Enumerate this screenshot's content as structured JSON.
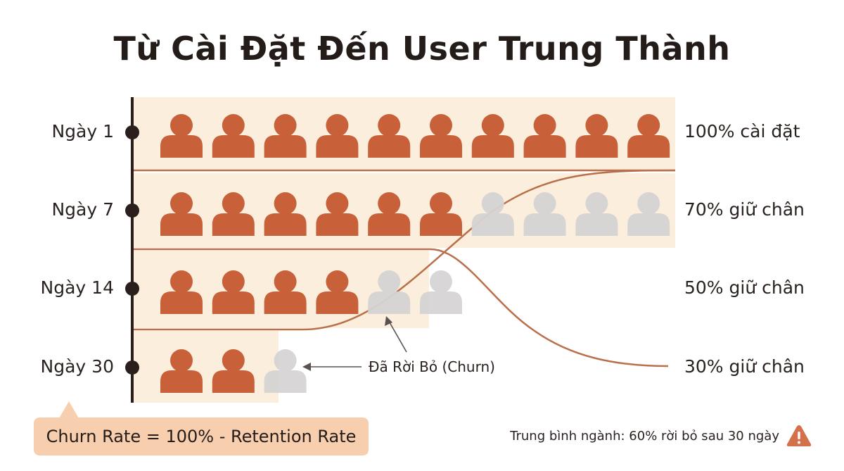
{
  "title": "Từ Cài Đặt Đến User Trung Thành",
  "colors": {
    "active_user": "#c8603a",
    "churned_user": "#d6d4d4",
    "band": "#fbeedd",
    "line": "#b9704a",
    "axis": "#2a1f1c",
    "formula_bg": "#f8cfae",
    "warning": "#d2714a"
  },
  "rows": [
    {
      "day_label": "Ngày 1",
      "retention_label": "100% cài đặt",
      "retained": 10,
      "churned": 0,
      "retention_pct": 100
    },
    {
      "day_label": "Ngày 7",
      "retention_label": "70% giữ chân",
      "retained": 6,
      "churned": 4,
      "retention_pct": 70
    },
    {
      "day_label": "Ngày 14",
      "retention_label": "50% giữ chân",
      "retained": 4,
      "churned": 2,
      "retention_pct": 50
    },
    {
      "day_label": "Ngày 30",
      "retention_label": "30% giữ chân",
      "retained": 2,
      "churned": 1,
      "retention_pct": 30
    }
  ],
  "churn_annotation": "Đã Rời Bỏ (Churn)",
  "formula": "Churn Rate = 100% - Retention Rate",
  "industry_note": "Trung bình ngành: 60% rời bỏ sau 30 ngày",
  "warning_icon": "warning-triangle-icon"
}
